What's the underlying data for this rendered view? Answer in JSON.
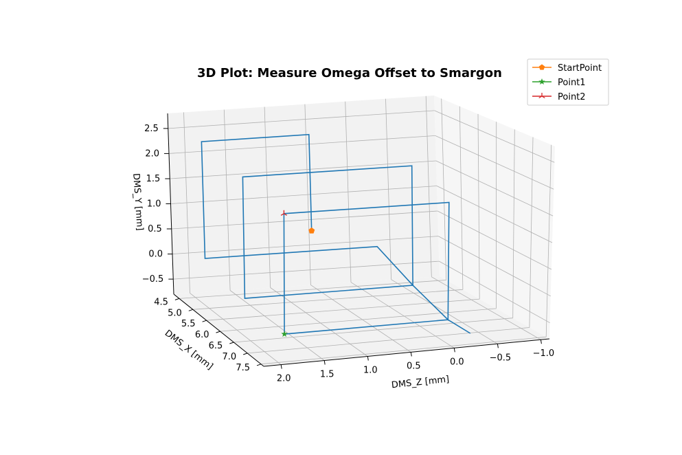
{
  "chart_data": {
    "type": "line",
    "projection": "3d",
    "title": "3D Plot: Measure Omega Offset to Smargon",
    "xlabel": "DMS_Z [mm]",
    "ylabel": "DMS_X [mm]",
    "zlabel": "DMS_Y [mm]",
    "z_ticks": [
      "2.0",
      "1.5",
      "1.0",
      "0.5",
      "0.0",
      "−0.5",
      "−1.0"
    ],
    "x_ticks": [
      "4.5",
      "5.0",
      "5.5",
      "6.0",
      "6.5",
      "7.0",
      "7.5"
    ],
    "y_ticks": [
      "−0.5",
      "0.0",
      "0.5",
      "1.0",
      "1.5",
      "2.0",
      "2.5"
    ],
    "grid": true,
    "legend_placement": "top-right",
    "colors": {
      "path": "#1f77b4",
      "StartPoint": "#ff7f0e",
      "Point1": "#2ca02c",
      "Point2": "#d62728"
    },
    "series": [
      {
        "name": "",
        "points": [
          [
            0.58,
            4.6,
            0.4
          ],
          [
            0.58,
            4.6,
            2.3
          ],
          [
            1.9,
            4.6,
            2.3
          ],
          [
            1.9,
            4.6,
            0.0
          ],
          [
            -0.22,
            4.6,
            0.0
          ],
          [
            -0.22,
            5.7,
            -0.35
          ],
          [
            -0.22,
            5.7,
            1.95
          ],
          [
            1.8,
            5.7,
            1.95
          ],
          [
            1.8,
            5.7,
            -0.35
          ],
          [
            -0.22,
            5.7,
            -0.35
          ],
          [
            -0.22,
            6.8,
            -0.6
          ],
          [
            -0.22,
            6.8,
            1.6
          ],
          [
            1.7,
            6.8,
            1.6
          ],
          [
            1.7,
            6.8,
            -0.6
          ],
          [
            -0.22,
            6.8,
            -0.6
          ],
          [
            -0.22,
            7.5,
            -0.6
          ]
        ]
      },
      {
        "name": "StartPoint",
        "marker": "pentagon",
        "points": [
          [
            0.58,
            4.6,
            0.4
          ]
        ]
      },
      {
        "name": "Point1",
        "marker": "star",
        "points": [
          [
            1.7,
            6.8,
            -0.6
          ]
        ]
      },
      {
        "name": "Point2",
        "marker": "tri_star",
        "points": [
          [
            1.7,
            6.8,
            1.6
          ]
        ]
      }
    ],
    "legend": [
      "StartPoint",
      "Point1",
      "Point2"
    ]
  }
}
